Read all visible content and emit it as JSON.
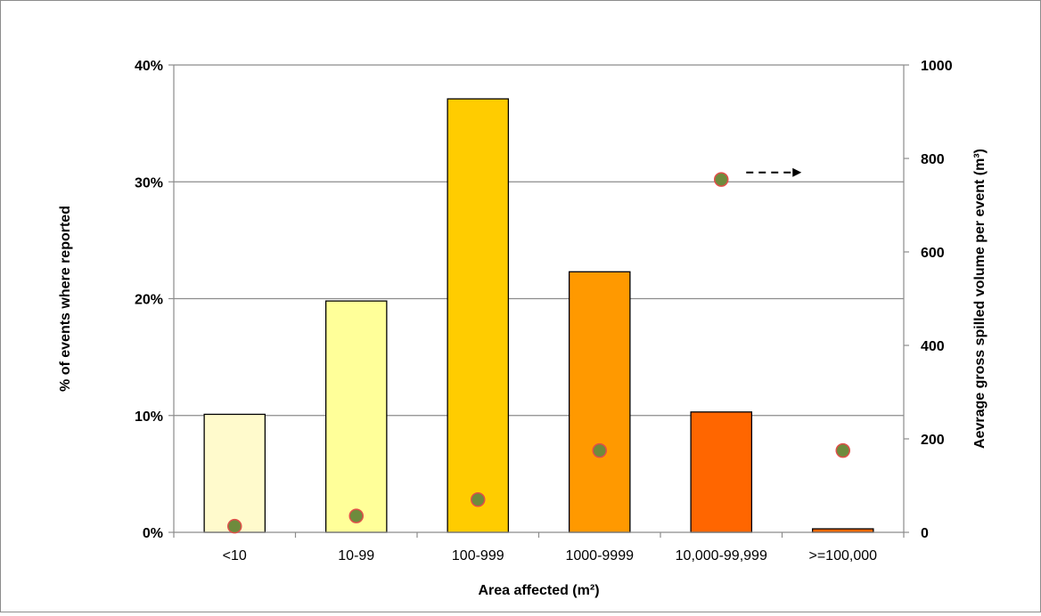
{
  "chart_data": {
    "type": "bar",
    "xlabel": "Area affected (m²)",
    "ylabel": "% of events where reported",
    "y2label": "Aevrage gross spilled volume per event (m³)",
    "categories": [
      "<10",
      "10-99",
      "100-999",
      "1000-9999",
      "10,000-99,999",
      ">=100,000"
    ],
    "ylim": [
      0,
      40
    ],
    "y_ticks": [
      "0%",
      "10%",
      "20%",
      "30%",
      "40%"
    ],
    "y2lim": [
      0,
      1000
    ],
    "y2_ticks": [
      "0",
      "200",
      "400",
      "600",
      "800",
      "1000"
    ],
    "grid": true,
    "series": [
      {
        "axis": "left",
        "type": "bar",
        "values": [
          10.1,
          19.8,
          37.1,
          22.3,
          10.3,
          0.3
        ],
        "colors": [
          "#FFFACC",
          "#FFFF99",
          "#FFCC00",
          "#FF9900",
          "#FF6600",
          "#FF6600"
        ]
      },
      {
        "axis": "right",
        "type": "scatter",
        "values": [
          13,
          35,
          70,
          175,
          755,
          175
        ],
        "color": "#6E8B3D",
        "edge_color": "#E0504A"
      }
    ],
    "annotations": [
      {
        "type": "arrow",
        "style": "dashed",
        "direction": "right",
        "category": "10,000-99,999",
        "y2_value": 770
      }
    ]
  }
}
